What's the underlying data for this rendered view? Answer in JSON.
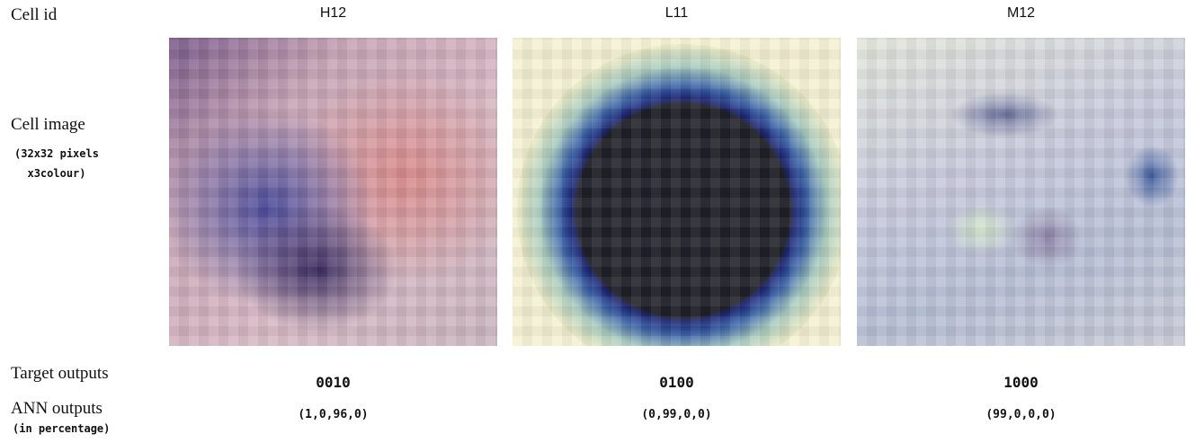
{
  "row_labels": {
    "cell_id": "Cell id",
    "cell_image": "Cell image",
    "cell_image_note": "(32x32 pixels x3colour)",
    "target_outputs": "Target outputs",
    "ann_outputs": "ANN outputs",
    "ann_outputs_note": "(in percentage)"
  },
  "cells": [
    {
      "id": "H12",
      "target": "0010",
      "ann": "(1,0,96,0)"
    },
    {
      "id": "L11",
      "target": "0100",
      "ann": "(0,99,0,0)"
    },
    {
      "id": "M12",
      "target": "1000",
      "ann": "(99,0,0,0)"
    }
  ]
}
